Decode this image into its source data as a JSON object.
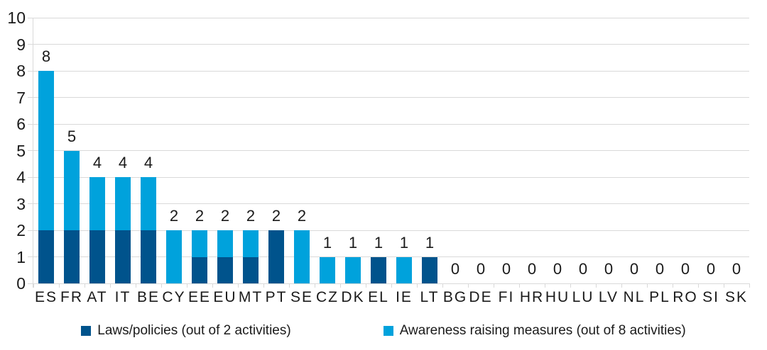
{
  "chart_data": {
    "type": "bar",
    "stacked": true,
    "title": "",
    "xlabel": "",
    "ylabel": "",
    "categories": [
      "ES",
      "FR",
      "AT",
      "IT",
      "BE",
      "CY",
      "EE",
      "EU",
      "MT",
      "PT",
      "SE",
      "CZ",
      "DK",
      "EL",
      "IE",
      "LT",
      "BG",
      "DE",
      "FI",
      "HR",
      "HU",
      "LU",
      "LV",
      "NL",
      "PL",
      "RO",
      "SI",
      "SK"
    ],
    "series": [
      {
        "name": "Laws/policies (out of 2 activities)",
        "color": "#00538c",
        "values": [
          2,
          2,
          2,
          2,
          2,
          0,
          1,
          1,
          1,
          2,
          0,
          0,
          0,
          1,
          0,
          1,
          0,
          0,
          0,
          0,
          0,
          0,
          0,
          0,
          0,
          0,
          0,
          0
        ]
      },
      {
        "name": "Awareness raising measures (out of 8 activities)",
        "color": "#00a2dc",
        "values": [
          6,
          3,
          2,
          2,
          2,
          2,
          1,
          1,
          1,
          0,
          2,
          1,
          1,
          0,
          1,
          0,
          0,
          0,
          0,
          0,
          0,
          0,
          0,
          0,
          0,
          0,
          0,
          0
        ]
      }
    ],
    "bar_total_labels": [
      "8",
      "5",
      "4",
      "4",
      "4",
      "2",
      "2",
      "2",
      "2",
      "2",
      "2",
      "1",
      "1",
      "1",
      "1",
      "1",
      "0",
      "0",
      "0",
      "0",
      "0",
      "0",
      "0",
      "0",
      "0",
      "0",
      "0",
      "0"
    ],
    "ylim": [
      0,
      10
    ],
    "yticks": [
      0,
      1,
      2,
      3,
      4,
      5,
      6,
      7,
      8,
      9,
      10
    ],
    "grid": true,
    "legend_position": "bottom"
  },
  "colors": {
    "gridline": "#d9d9d9",
    "text": "#1a1a1a",
    "background": "#ffffff"
  },
  "legend": {
    "items": [
      {
        "label": "Laws/policies (out of 2 activities)",
        "color": "#00538c"
      },
      {
        "label": "Awareness raising measures (out of 8 activities)",
        "color": "#00a2dc"
      }
    ]
  }
}
